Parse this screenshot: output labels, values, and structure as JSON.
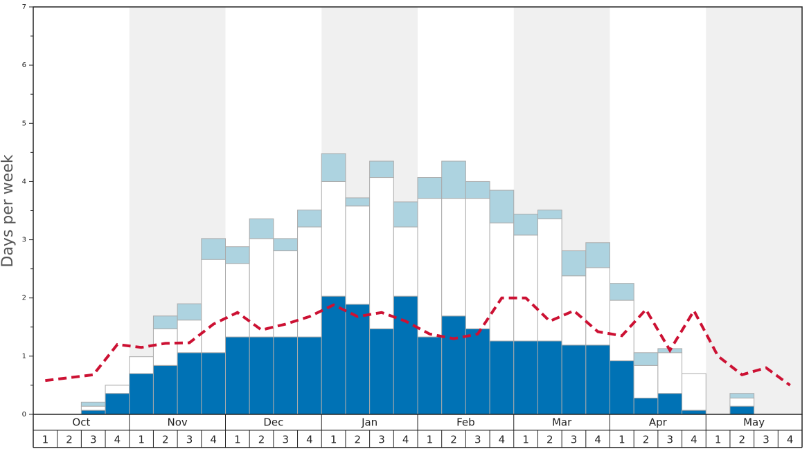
{
  "chart_data": {
    "type": "stacked-bar-line",
    "y_label": "Days per week",
    "months": [
      "Oct",
      "Nov",
      "Dec",
      "Jan",
      "Feb",
      "Mar",
      "Apr",
      "May"
    ],
    "categories": [
      "1",
      "2",
      "3",
      "4",
      "1",
      "2",
      "3",
      "4",
      "1",
      "2",
      "3",
      "4",
      "1",
      "2",
      "3",
      "4",
      "1",
      "2",
      "3",
      "4",
      "1",
      "2",
      "3",
      "4",
      "1",
      "2",
      "3",
      "4",
      "1",
      "2",
      "3",
      "4"
    ],
    "ylim": [
      0,
      7
    ],
    "yticks": [
      0,
      1,
      2,
      3,
      4,
      5,
      6,
      7
    ],
    "yminor": [
      0.5,
      1.5,
      2.5,
      3.5,
      4.5,
      5.5,
      6.5
    ],
    "series": [
      {
        "color": "#0072b5",
        "values": [
          0,
          0,
          0.07,
          0.36,
          0.7,
          0.84,
          1.06,
          1.06,
          1.33,
          1.33,
          1.33,
          1.33,
          2.03,
          1.89,
          1.47,
          2.03,
          1.33,
          1.69,
          1.47,
          1.26,
          1.26,
          1.26,
          1.19,
          1.19,
          0.92,
          0.28,
          0.36,
          0.07,
          0,
          0.14,
          0,
          0
        ]
      },
      {
        "color": "#ffffff",
        "values": [
          0,
          0,
          0.07,
          0.14,
          0.29,
          0.63,
          0.56,
          1.6,
          1.26,
          1.69,
          1.48,
          1.89,
          1.97,
          1.69,
          2.6,
          1.19,
          2.38,
          2.02,
          2.24,
          2.03,
          1.82,
          2.1,
          1.19,
          1.33,
          1.04,
          0.56,
          0.7,
          0.63,
          0,
          0.14,
          0,
          0
        ]
      },
      {
        "color": "#add3e0",
        "values": [
          0,
          0,
          0.07,
          0,
          0,
          0.22,
          0.28,
          0.36,
          0.29,
          0.34,
          0.21,
          0.29,
          0.48,
          0.14,
          0.28,
          0.43,
          0.36,
          0.64,
          0.29,
          0.56,
          0.36,
          0.15,
          0.43,
          0.43,
          0.29,
          0.22,
          0.07,
          0,
          0,
          0.08,
          0,
          0
        ]
      },
      {
        "type": "line",
        "color": "#cc1133",
        "values": [
          0.58,
          0.63,
          0.68,
          1.2,
          1.15,
          1.22,
          1.23,
          1.55,
          1.75,
          1.45,
          1.55,
          1.68,
          1.88,
          1.68,
          1.75,
          1.6,
          1.38,
          1.3,
          1.38,
          2.0,
          2.0,
          1.6,
          1.78,
          1.42,
          1.35,
          1.8,
          1.1,
          1.78,
          1.0,
          0.68,
          0.8,
          0.5
        ]
      }
    ]
  }
}
